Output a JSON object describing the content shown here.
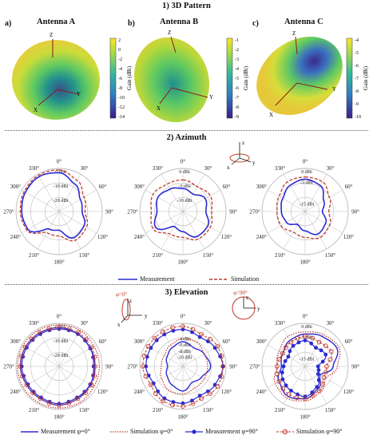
{
  "sections": {
    "pattern_3d": "1) 3D Pattern",
    "azimuth": "2) Azimuth",
    "elevation": "3) Elevation"
  },
  "antennas": [
    {
      "tag": "a)",
      "title": "Antenna A",
      "colorbar_label": "Gain (dBi)",
      "colorbar_ticks": [
        "2",
        "0",
        "-2",
        "-4",
        "-6",
        "-8",
        "-10",
        "-12",
        "-14"
      ]
    },
    {
      "tag": "b)",
      "title": "Antenna B",
      "colorbar_label": "Gain (dBi)",
      "colorbar_ticks": [
        "-1",
        "-2",
        "-3",
        "-4",
        "-5",
        "-6",
        "-7",
        "-8",
        "-9"
      ]
    },
    {
      "tag": "c)",
      "title": "Antenna C",
      "colorbar_label": "Gain (dBi)",
      "colorbar_ticks": [
        "-4",
        "-5",
        "-6",
        "-7",
        "-8",
        "-9",
        "-10"
      ]
    }
  ],
  "axis_letters": {
    "x": "X",
    "y": "Y",
    "z": "Z"
  },
  "inset_labels": {
    "phi0": "φ=0°",
    "phi90": "φ=90°",
    "x": "x",
    "y": "y",
    "z": "z"
  },
  "angle_labels": [
    "0°",
    "30°",
    "60°",
    "90°",
    "120°",
    "150°",
    "180°",
    "210°",
    "240°",
    "270°",
    "300°",
    "330°"
  ],
  "colors": {
    "measurement": "#2a2ad4",
    "simulation": "#c0392b",
    "grid": "#bbbbbb",
    "colormap": [
      "#440154",
      "#3b528b",
      "#21908d",
      "#5dc963",
      "#fde725"
    ]
  },
  "legend": {
    "azimuth": [
      "Measurement",
      "Simulation"
    ],
    "elevation": [
      "Measurement φ=0°",
      "Simulation φ=0°",
      "Measurement φ=90°",
      "Simulation φ=90°"
    ]
  },
  "chart_data": [
    {
      "id": "azimuth-A",
      "type": "polar",
      "ring_labels": [
        "0 dBi",
        "-10 dBi",
        "-20 dBi"
      ],
      "ring_values": [
        0,
        -10,
        -20
      ],
      "rmin": -30,
      "rmax": 0,
      "series": [
        {
          "name": "Measurement",
          "angles": [
            0,
            30,
            60,
            90,
            120,
            150,
            180,
            210,
            240,
            270,
            300,
            330,
            360
          ],
          "values": [
            -3,
            -8,
            -13,
            -14,
            -10,
            -9,
            -17,
            -16,
            -5,
            -4,
            -3,
            -2,
            -3
          ]
        },
        {
          "name": "Simulation",
          "angles": [
            0,
            30,
            60,
            90,
            120,
            150,
            180,
            210,
            240,
            270,
            300,
            330,
            360
          ],
          "values": [
            -1,
            -5,
            -10,
            -12,
            -8,
            -7,
            -13,
            -13,
            -4,
            -3,
            -2,
            -1,
            -1
          ]
        }
      ]
    },
    {
      "id": "azimuth-B",
      "type": "polar",
      "ring_labels": [
        "0 dBi",
        "-5 dBi",
        "-10 dBi"
      ],
      "ring_values": [
        0,
        -5,
        -10
      ],
      "rmin": -15,
      "rmax": 0,
      "series": [
        {
          "name": "Measurement",
          "angles": [
            0,
            30,
            60,
            90,
            120,
            150,
            180,
            210,
            240,
            270,
            300,
            330,
            360
          ],
          "values": [
            -7,
            -8,
            -6,
            -7,
            -5,
            -5,
            -8,
            -9,
            -4,
            -6,
            -5,
            -6,
            -7
          ]
        },
        {
          "name": "Simulation",
          "angles": [
            0,
            30,
            60,
            90,
            120,
            150,
            180,
            210,
            240,
            270,
            300,
            330,
            360
          ],
          "values": [
            -4,
            -5,
            -4,
            -5,
            -4,
            -4,
            -6,
            -6,
            -3,
            -4,
            -3,
            -4,
            -4
          ]
        }
      ]
    },
    {
      "id": "azimuth-C",
      "type": "polar",
      "ring_labels": [
        "0 dBi",
        "-5 dBi",
        "-15 dBi"
      ],
      "ring_values": [
        0,
        -5,
        -15
      ],
      "rmin": -20,
      "rmax": 0,
      "series": [
        {
          "name": "Measurement",
          "angles": [
            0,
            30,
            60,
            90,
            120,
            150,
            180,
            210,
            240,
            270,
            300,
            330,
            360
          ],
          "values": [
            -5,
            -6,
            -10,
            -12,
            -9,
            -8,
            -11,
            -13,
            -10,
            -9,
            -8,
            -6,
            -5
          ]
        },
        {
          "name": "Simulation",
          "angles": [
            0,
            30,
            60,
            90,
            120,
            150,
            180,
            210,
            240,
            270,
            300,
            330,
            360
          ],
          "values": [
            -4,
            -4,
            -7,
            -9,
            -7,
            -6,
            -8,
            -9,
            -7,
            -7,
            -6,
            -4,
            -4
          ]
        }
      ]
    },
    {
      "id": "elevation-A",
      "type": "polar",
      "ring_labels": [
        "0 dBi",
        "-10 dBi",
        "-20 dBi"
      ],
      "ring_values": [
        0,
        -10,
        -20
      ],
      "rmin": -30,
      "rmax": 0,
      "series": [
        {
          "name": "Measurement φ=0°",
          "angles": [
            0,
            30,
            60,
            90,
            120,
            150,
            180,
            210,
            240,
            270,
            300,
            330,
            360
          ],
          "values": [
            -3,
            -4,
            -5,
            -5,
            -5,
            -4,
            -3,
            -4,
            -4,
            -3,
            -3,
            -3,
            -3
          ]
        },
        {
          "name": "Simulation φ=0°",
          "angles": [
            0,
            30,
            60,
            90,
            120,
            150,
            180,
            210,
            240,
            270,
            300,
            330,
            360
          ],
          "values": [
            -1,
            -1,
            -2,
            -2,
            -2,
            -1,
            -1,
            -1,
            -1,
            -1,
            -1,
            -1,
            -1
          ]
        },
        {
          "name": "Measurement φ=90°",
          "angles": [
            0,
            30,
            60,
            90,
            120,
            150,
            180,
            210,
            240,
            270,
            300,
            330,
            360
          ],
          "values": [
            -4,
            -4,
            -5,
            -6,
            -5,
            -5,
            -4,
            -5,
            -5,
            -4,
            -4,
            -4,
            -4
          ]
        },
        {
          "name": "Simulation φ=90°",
          "angles": [
            0,
            30,
            60,
            90,
            120,
            150,
            180,
            210,
            240,
            270,
            300,
            330,
            360
          ],
          "values": [
            -3,
            -3,
            -4,
            -5,
            -4,
            -4,
            -3,
            -4,
            -4,
            -3,
            -3,
            -3,
            -3
          ]
        }
      ]
    },
    {
      "id": "elevation-B",
      "type": "polar",
      "ring_labels": [
        "-4 dBi",
        "-6 dBi",
        "-8 dBi",
        "-10 dBi"
      ],
      "ring_values": [
        -4,
        -6,
        -8,
        -10
      ],
      "rmin": -14,
      "rmax": 0,
      "series": [
        {
          "name": "Measurement φ=0°",
          "angles": [
            0,
            30,
            60,
            90,
            120,
            150,
            180,
            210,
            240,
            270,
            300,
            330,
            360
          ],
          "values": [
            -6,
            -7,
            -6,
            -5,
            -7,
            -8,
            -6,
            -7,
            -8,
            -9,
            -8,
            -7,
            -6
          ]
        },
        {
          "name": "Simulation φ=0°",
          "angles": [
            0,
            30,
            60,
            90,
            120,
            150,
            180,
            210,
            240,
            270,
            300,
            330,
            360
          ],
          "values": [
            -5,
            -5,
            -6,
            -6,
            -6,
            -6,
            -5,
            -5,
            -6,
            -7,
            -7,
            -6,
            -5
          ]
        },
        {
          "name": "Measurement φ=90°",
          "angles": [
            0,
            30,
            60,
            90,
            120,
            150,
            180,
            210,
            240,
            270,
            300,
            330,
            360
          ],
          "values": [
            -2,
            -3,
            -2,
            -1,
            -2,
            -3,
            -2,
            -2,
            -3,
            -2,
            -2,
            -2,
            -2
          ]
        },
        {
          "name": "Simulation φ=90°",
          "angles": [
            0,
            30,
            60,
            90,
            120,
            150,
            180,
            210,
            240,
            270,
            300,
            330,
            360
          ],
          "values": [
            -1,
            -2,
            -1,
            -1,
            -1,
            -2,
            -1,
            -1,
            -2,
            -1,
            -1,
            -1,
            -1
          ]
        }
      ]
    },
    {
      "id": "elevation-C",
      "type": "polar",
      "ring_labels": [
        "0 dBi",
        "-5 dBi",
        "-15 dBi"
      ],
      "ring_values": [
        0,
        -5,
        -15
      ],
      "rmin": -20,
      "rmax": 0,
      "series": [
        {
          "name": "Measurement φ=0°",
          "angles": [
            0,
            30,
            60,
            90,
            120,
            150,
            180,
            210,
            240,
            270,
            300,
            330,
            360
          ],
          "values": [
            -5,
            -4,
            -3,
            -7,
            -12,
            -8,
            -5,
            -4,
            -6,
            -9,
            -8,
            -6,
            -5
          ]
        },
        {
          "name": "Simulation φ=0°",
          "angles": [
            0,
            30,
            60,
            90,
            120,
            150,
            180,
            210,
            240,
            270,
            300,
            330,
            360
          ],
          "values": [
            -4,
            -3,
            -2,
            -5,
            -9,
            -6,
            -4,
            -3,
            -4,
            -7,
            -6,
            -4,
            -4
          ]
        },
        {
          "name": "Measurement φ=90°",
          "angles": [
            0,
            30,
            60,
            90,
            120,
            150,
            180,
            210,
            240,
            270,
            300,
            330,
            360
          ],
          "values": [
            -8,
            -10,
            -9,
            -14,
            -13,
            -9,
            -6,
            -7,
            -8,
            -10,
            -11,
            -9,
            -8
          ]
        },
        {
          "name": "Simulation φ=90°",
          "angles": [
            0,
            30,
            60,
            90,
            120,
            150,
            180,
            210,
            240,
            270,
            300,
            330,
            360
          ],
          "values": [
            -6,
            -7,
            -6,
            -10,
            -10,
            -7,
            -5,
            -5,
            -6,
            -7,
            -8,
            -7,
            -6
          ]
        }
      ]
    }
  ]
}
